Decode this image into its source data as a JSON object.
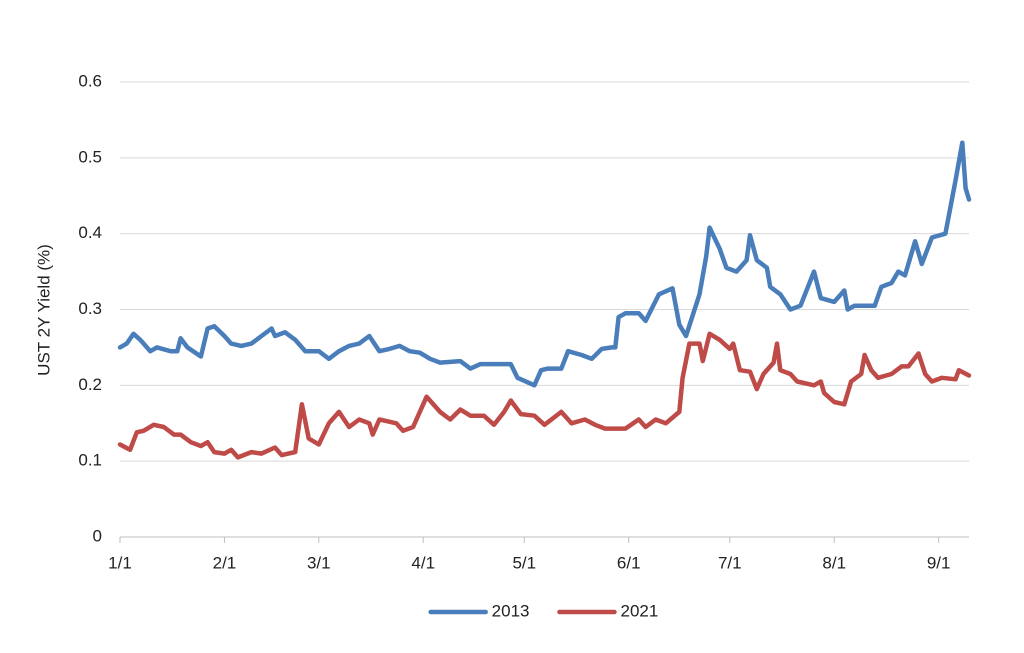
{
  "chart_data": {
    "type": "line",
    "y_label": "UST 2Y Yield (%)",
    "xlim": [
      0,
      252
    ],
    "xticks": [
      {
        "value": 0,
        "label": "1/1"
      },
      {
        "value": 31,
        "label": "2/1"
      },
      {
        "value": 59,
        "label": "3/1"
      },
      {
        "value": 90,
        "label": "4/1"
      },
      {
        "value": 120,
        "label": "5/1"
      },
      {
        "value": 151,
        "label": "6/1"
      },
      {
        "value": 181,
        "label": "7/1"
      },
      {
        "value": 212,
        "label": "8/1"
      },
      {
        "value": 243,
        "label": "9/1"
      }
    ],
    "ylim": [
      0,
      0.6
    ],
    "yticks": [
      0,
      0.1,
      0.2,
      0.3,
      0.4,
      0.5,
      0.6
    ],
    "grid": true,
    "legend": "bottom",
    "series": [
      {
        "name": "2013",
        "color": "#4a7ebb",
        "x": [
          0,
          2,
          4,
          6,
          9,
          11,
          15,
          17,
          18,
          20,
          24,
          26,
          28,
          31,
          33,
          36,
          39,
          42,
          45,
          46,
          49,
          52,
          55,
          59,
          62,
          65,
          68,
          71,
          74,
          77,
          80,
          83,
          86,
          89,
          92,
          95,
          101,
          104,
          107,
          111,
          116,
          118,
          123,
          125,
          127,
          131,
          133,
          137,
          140,
          143,
          146,
          147,
          148,
          150,
          154,
          156,
          160,
          164,
          166,
          168,
          172,
          174,
          175,
          178,
          180,
          183,
          186,
          187,
          189,
          192,
          193,
          196,
          199,
          202,
          206,
          208,
          212,
          215,
          216,
          218,
          224,
          226,
          229,
          231,
          233,
          236,
          238,
          241,
          245,
          248,
          250,
          251,
          252
        ],
        "values": [
          0.25,
          0.255,
          0.268,
          0.26,
          0.245,
          0.25,
          0.245,
          0.245,
          0.262,
          0.25,
          0.238,
          0.275,
          0.278,
          0.265,
          0.255,
          0.252,
          0.255,
          0.265,
          0.275,
          0.265,
          0.27,
          0.26,
          0.245,
          0.245,
          0.235,
          0.245,
          0.252,
          0.255,
          0.265,
          0.245,
          0.248,
          0.252,
          0.245,
          0.243,
          0.235,
          0.23,
          0.232,
          0.222,
          0.228,
          0.228,
          0.228,
          0.21,
          0.2,
          0.22,
          0.222,
          0.222,
          0.245,
          0.24,
          0.235,
          0.248,
          0.25,
          0.25,
          0.29,
          0.295,
          0.295,
          0.285,
          0.32,
          0.328,
          0.28,
          0.265,
          0.32,
          0.37,
          0.408,
          0.38,
          0.355,
          0.35,
          0.365,
          0.398,
          0.365,
          0.355,
          0.33,
          0.32,
          0.3,
          0.305,
          0.35,
          0.315,
          0.31,
          0.325,
          0.3,
          0.305,
          0.305,
          0.33,
          0.335,
          0.35,
          0.345,
          0.39,
          0.36,
          0.395,
          0.4,
          0.47,
          0.52,
          0.46,
          0.445
        ]
      },
      {
        "name": "2021",
        "color": "#be4b48",
        "x": [
          0,
          3,
          5,
          7,
          10,
          13,
          16,
          18,
          21,
          24,
          26,
          28,
          31,
          33,
          35,
          39,
          42,
          46,
          48,
          52,
          54,
          56,
          59,
          62,
          65,
          68,
          71,
          74,
          75,
          77,
          82,
          84,
          87,
          91,
          95,
          98,
          101,
          104,
          108,
          111,
          114,
          116,
          119,
          123,
          126,
          131,
          134,
          138,
          141,
          144,
          150,
          154,
          156,
          159,
          162,
          166,
          167,
          169,
          172,
          173,
          175,
          178,
          181,
          182,
          184,
          187,
          189,
          191,
          194,
          195,
          196,
          199,
          201,
          206,
          208,
          209,
          212,
          215,
          217,
          220,
          221,
          223,
          225,
          229,
          232,
          234,
          237,
          239,
          241,
          244,
          248,
          249,
          252
        ],
        "values": [
          0.122,
          0.115,
          0.138,
          0.14,
          0.148,
          0.145,
          0.135,
          0.135,
          0.125,
          0.12,
          0.125,
          0.112,
          0.11,
          0.115,
          0.105,
          0.112,
          0.11,
          0.118,
          0.108,
          0.112,
          0.175,
          0.13,
          0.122,
          0.15,
          0.165,
          0.145,
          0.155,
          0.15,
          0.135,
          0.155,
          0.15,
          0.14,
          0.145,
          0.185,
          0.165,
          0.155,
          0.168,
          0.16,
          0.16,
          0.148,
          0.165,
          0.18,
          0.162,
          0.16,
          0.148,
          0.165,
          0.15,
          0.155,
          0.148,
          0.143,
          0.143,
          0.155,
          0.145,
          0.155,
          0.15,
          0.165,
          0.21,
          0.255,
          0.255,
          0.232,
          0.268,
          0.26,
          0.248,
          0.255,
          0.22,
          0.218,
          0.195,
          0.215,
          0.23,
          0.255,
          0.22,
          0.215,
          0.205,
          0.2,
          0.205,
          0.19,
          0.178,
          0.175,
          0.205,
          0.215,
          0.24,
          0.22,
          0.21,
          0.215,
          0.225,
          0.225,
          0.242,
          0.215,
          0.205,
          0.21,
          0.208,
          0.22,
          0.213
        ]
      }
    ]
  }
}
